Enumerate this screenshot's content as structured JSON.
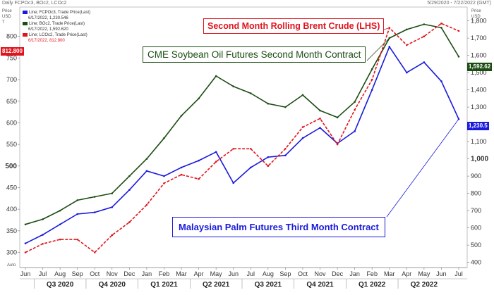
{
  "header": {
    "title": "Daily FCPOc3, BOc2, LCOc2",
    "date_range": "5/29/2020 - 7/22/2022 (GMT)"
  },
  "legend": [
    {
      "label": "Line; FCPOc3, Trade Price(Last)",
      "detail": "6/17/2022, 1,230.546",
      "color": "#1a1adc"
    },
    {
      "label": "Line; BOc2, Trade Price(Last)",
      "detail": "6/17/2022, 1,592.620",
      "color": "#1b4d12"
    },
    {
      "label": "Line; LCOc2, Trade Price(Last)",
      "detail": "6/17/2022, 812.800",
      "color": "#e0141e"
    }
  ],
  "annotations": {
    "brent": "Second Month Rolling Brent Crude (LHS)",
    "soy": "CME Soybean Oil Futures Second Month Contract",
    "palm": "Malaysian Palm Futures Third Month Contract"
  },
  "tags": {
    "brent": "812.800",
    "soy": "1,592.62",
    "palm": "1,230.5"
  },
  "axis_units": {
    "left": [
      "Price",
      "USD",
      "T"
    ],
    "right": [
      "Price",
      "USD",
      "T"
    ],
    "corner": "Auto"
  },
  "chart_data": {
    "type": "line",
    "title": "Daily FCPOc3, BOc2, LCOc2",
    "left_axis": {
      "ylim": [
        265,
        868
      ],
      "ticks": [
        300,
        350,
        400,
        450,
        500,
        550,
        600,
        650,
        700,
        750,
        800
      ]
    },
    "right_axis": {
      "ylim": [
        370,
        1880
      ],
      "ticks": [
        400,
        500,
        600,
        700,
        800,
        900,
        1000,
        1100,
        1200,
        1300,
        1400,
        1500,
        1600,
        1700,
        1800
      ]
    },
    "x_months": [
      "Jun",
      "Jul",
      "Aug",
      "Sep",
      "Oct",
      "Nov",
      "Dec",
      "Jan",
      "Feb",
      "Mar",
      "Apr",
      "May",
      "Jun",
      "Jul",
      "Aug",
      "Sep",
      "Oct",
      "Nov",
      "Dec",
      "Jan",
      "Feb",
      "Mar",
      "Apr",
      "May",
      "Jun",
      "Jul"
    ],
    "x_quarters": [
      "Q3 2020",
      "Q4 2020",
      "Q1 2021",
      "Q2 2021",
      "Q3 2021",
      "Q4 2021",
      "Q1 2022",
      "Q2 2022"
    ],
    "x": [
      "2020-06",
      "2020-07",
      "2020-08",
      "2020-09",
      "2020-10",
      "2020-11",
      "2020-12",
      "2021-01",
      "2021-02",
      "2021-03",
      "2021-04",
      "2021-05",
      "2021-06",
      "2021-07",
      "2021-08",
      "2021-09",
      "2021-10",
      "2021-11",
      "2021-12",
      "2022-01",
      "2022-02",
      "2022-03",
      "2022-04",
      "2022-05",
      "2022-06",
      "2022-06-17"
    ],
    "series": [
      {
        "name": "FCPOc3",
        "axis": "right",
        "color": "#1a1adc",
        "values": [
          510,
          560,
          620,
          680,
          690,
          720,
          820,
          930,
          900,
          950,
          990,
          1040,
          860,
          950,
          1010,
          1020,
          1120,
          1180,
          1090,
          1160,
          1400,
          1650,
          1500,
          1560,
          1450,
          1230.5
        ]
      },
      {
        "name": "BOc2",
        "axis": "right",
        "color": "#1b4d12",
        "values": [
          620,
          650,
          700,
          760,
          780,
          800,
          900,
          1000,
          1120,
          1250,
          1350,
          1480,
          1420,
          1380,
          1320,
          1300,
          1370,
          1280,
          1240,
          1330,
          1520,
          1700,
          1750,
          1780,
          1760,
          1592.62
        ]
      },
      {
        "name": "LCOc2",
        "axis": "left",
        "color": "#e0141e",
        "values": [
          300,
          320,
          330,
          330,
          300,
          340,
          370,
          410,
          460,
          480,
          470,
          510,
          540,
          540,
          500,
          540,
          590,
          610,
          550,
          630,
          700,
          820,
          780,
          800,
          830,
          812.8
        ]
      }
    ]
  }
}
